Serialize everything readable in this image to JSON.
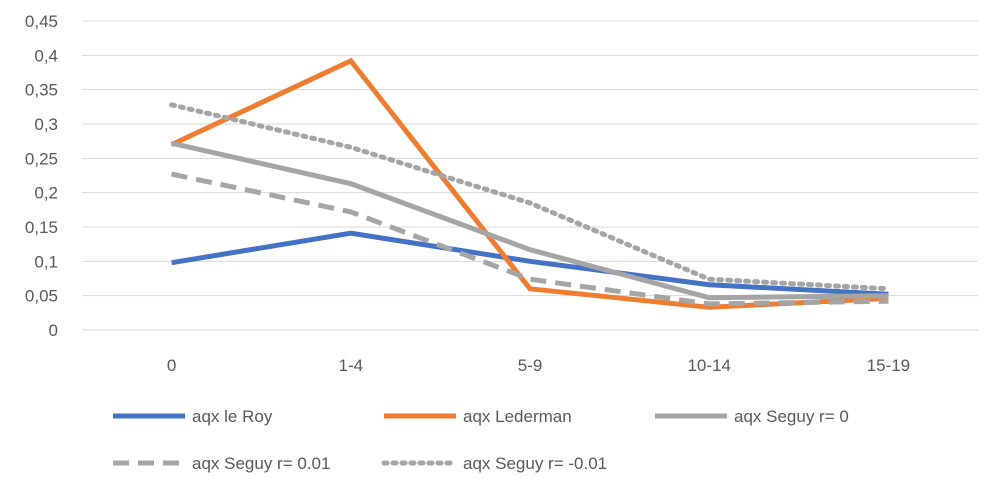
{
  "chart_data": {
    "type": "line",
    "title": "",
    "xlabel": "",
    "ylabel": "",
    "categories": [
      "0",
      "1-4",
      "5-9",
      "10-14",
      "15-19"
    ],
    "ylim": [
      0,
      0.45
    ],
    "yticks": [
      0,
      0.05,
      0.1,
      0.15,
      0.2,
      0.25,
      0.3,
      0.35,
      0.4,
      0.45
    ],
    "ytick_labels": [
      "0",
      "0,05",
      "0,1",
      "0,15",
      "0,2",
      "0,25",
      "0,3",
      "0,35",
      "0,4",
      "0,45"
    ],
    "grid": true,
    "legend_position": "bottom",
    "series": [
      {
        "name": "aqx le Roy",
        "values": [
          0.098,
          0.141,
          0.1,
          0.066,
          0.052
        ],
        "color": "#4472c4",
        "dash": "solid"
      },
      {
        "name": "aqx Lederman",
        "values": [
          0.27,
          0.392,
          0.06,
          0.033,
          0.046
        ],
        "color": "#ed7d31",
        "dash": "solid"
      },
      {
        "name": "aqx Seguy r= 0",
        "values": [
          0.272,
          0.213,
          0.117,
          0.047,
          0.05
        ],
        "color": "#a5a5a5",
        "dash": "solid"
      },
      {
        "name": "aqx Seguy r= 0.01",
        "values": [
          0.227,
          0.172,
          0.074,
          0.038,
          0.042
        ],
        "color": "#a5a5a5",
        "dash": "dash"
      },
      {
        "name": "aqx Seguy r= -0.01",
        "values": [
          0.328,
          0.266,
          0.185,
          0.074,
          0.06
        ],
        "color": "#a5a5a5",
        "dash": "dot"
      }
    ]
  }
}
